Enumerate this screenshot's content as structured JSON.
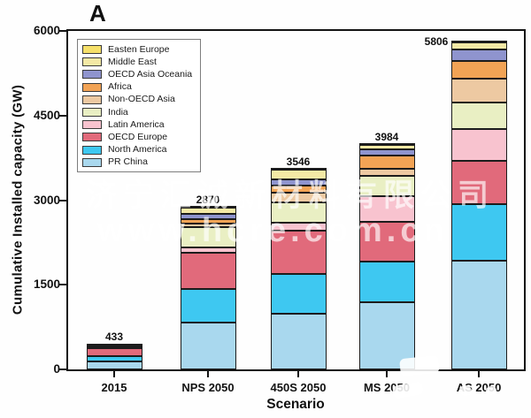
{
  "panel_label": "A",
  "watermark": {
    "line1": "济宁汇诚新材料有限公司",
    "line2": "www.hcre.com.cn"
  },
  "chart_data": {
    "type": "bar",
    "stacked": true,
    "title": "",
    "xlabel": "Scenario",
    "ylabel": "Cumulative Installed capacity (GW)",
    "ylim": [
      0,
      6000
    ],
    "yticks": [
      0,
      1500,
      3000,
      4500,
      6000
    ],
    "grid": false,
    "legend_position": "upper-left",
    "categories": [
      "2015",
      "NPS 2050",
      "450S 2050",
      "MS 2050",
      "AS 2050"
    ],
    "totals": [
      433,
      2870,
      3546,
      3984,
      5806
    ],
    "series": [
      {
        "name": "Easten Europe",
        "color": "#f6e06a",
        "values": [
          3,
          10,
          11,
          10,
          15
        ]
      },
      {
        "name": "Middle East",
        "color": "#f4e9a5",
        "values": [
          2,
          105,
          165,
          69,
          121
        ]
      },
      {
        "name": "OECD Asia Oceania",
        "color": "#8f94ce",
        "values": [
          5,
          95,
          110,
          110,
          200
        ]
      },
      {
        "name": "Africa",
        "color": "#f2a355",
        "values": [
          3,
          75,
          125,
          235,
          315
        ]
      },
      {
        "name": "Non-OECD Asia",
        "color": "#edc9a2",
        "values": [
          5,
          70,
          175,
          125,
          420
        ]
      },
      {
        "name": "India",
        "color": "#e9efc3",
        "values": [
          25,
          355,
          360,
          360,
          470
        ]
      },
      {
        "name": "Latin America",
        "color": "#f8c3cf",
        "values": [
          12,
          95,
          145,
          455,
          565
        ]
      },
      {
        "name": "OECD Europe",
        "color": "#e16a7b",
        "values": [
          147,
          645,
          770,
          705,
          770
        ]
      },
      {
        "name": "North America",
        "color": "#3ec8f1",
        "values": [
          86,
          590,
          705,
          720,
          1000
        ]
      },
      {
        "name": "PR China",
        "color": "#a9d8ee",
        "values": [
          145,
          830,
          980,
          1195,
          1930
        ]
      }
    ]
  }
}
